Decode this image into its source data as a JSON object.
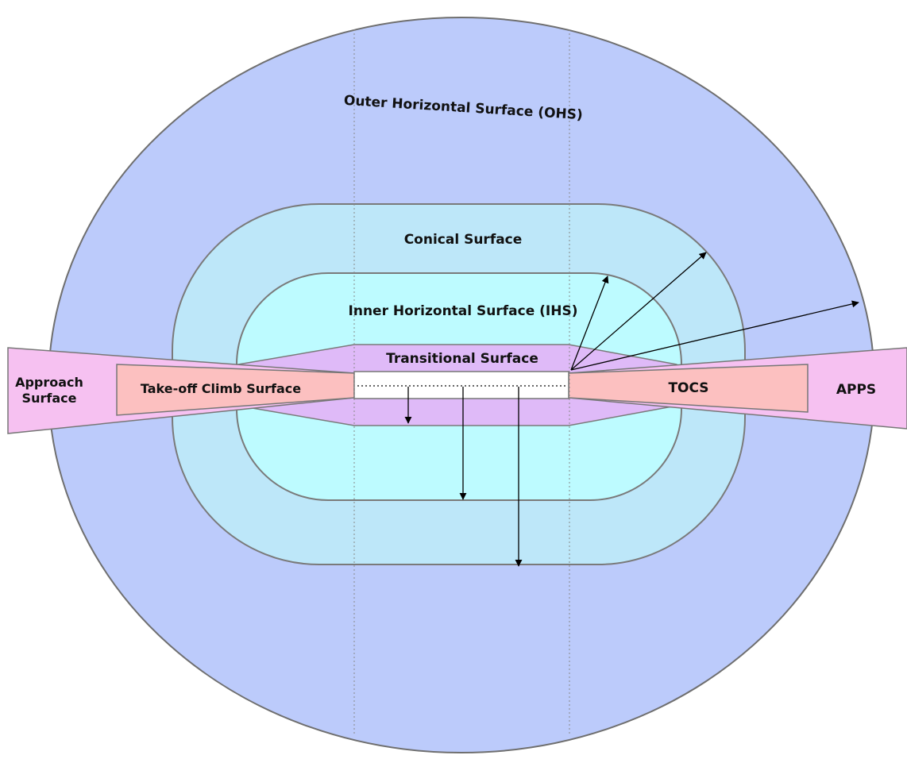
{
  "labels": {
    "ohs": "Outer Horizontal Surface (OHS)",
    "conical": "Conical Surface",
    "ihs": "Inner Horizontal Surface (IHS)",
    "transitional": "Transitional Surface",
    "approach_line1": "Approach",
    "approach_line2": "Surface",
    "tocs_left": "Take-off Climb Surface",
    "tocs_right": "TOCS",
    "apps": "APPS"
  },
  "colors": {
    "ohs": "#bccbfb",
    "conical": "#bde7f9",
    "ihs": "#bdfbff",
    "transitional": "#dfbaf8",
    "approach": "#f6c1f1",
    "tocs": "#fcc0c0",
    "runway": "#ffffff",
    "outline": "#6f6f6f",
    "arrow": "#000000"
  }
}
